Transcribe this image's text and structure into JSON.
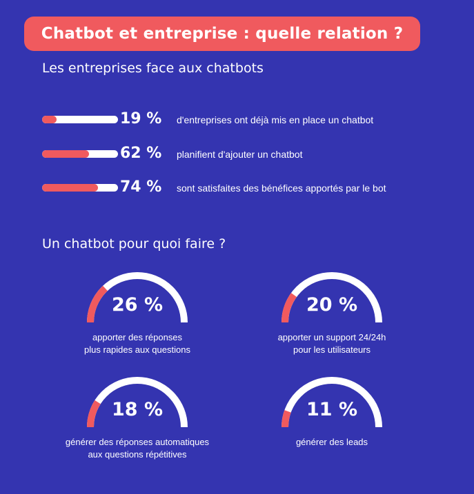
{
  "title": "Chatbot et entreprise : quelle relation ?",
  "section1_title": "Les entreprises face aux chatbots",
  "stats": [
    {
      "percent": 19,
      "label": "19 %",
      "text": "d'entreprises ont déjà mis en place un chatbot"
    },
    {
      "percent": 62,
      "label": "62 %",
      "text": "planifient d'ajouter un chatbot"
    },
    {
      "percent": 74,
      "label": "74 %",
      "text": "sont satisfaites des bénéfices apportés par le bot"
    }
  ],
  "section2_title": "Un chatbot pour quoi faire ?",
  "gauges": [
    {
      "percent": 26,
      "label": "26 %",
      "line1": "apporter des réponses",
      "line2": "plus rapides aux questions"
    },
    {
      "percent": 20,
      "label": "20 %",
      "line1": "apporter un support 24/24h",
      "line2": "pour les utilisateurs"
    },
    {
      "percent": 18,
      "label": "18 %",
      "line1": "générer des réponses automatiques",
      "line2": "aux questions répétitives"
    },
    {
      "percent": 11,
      "label": "11 %",
      "line1": "générer des leads",
      "line2": ""
    }
  ],
  "colors": {
    "background": "#3434b0",
    "accent": "#f05a5e",
    "track": "#ffffff"
  }
}
